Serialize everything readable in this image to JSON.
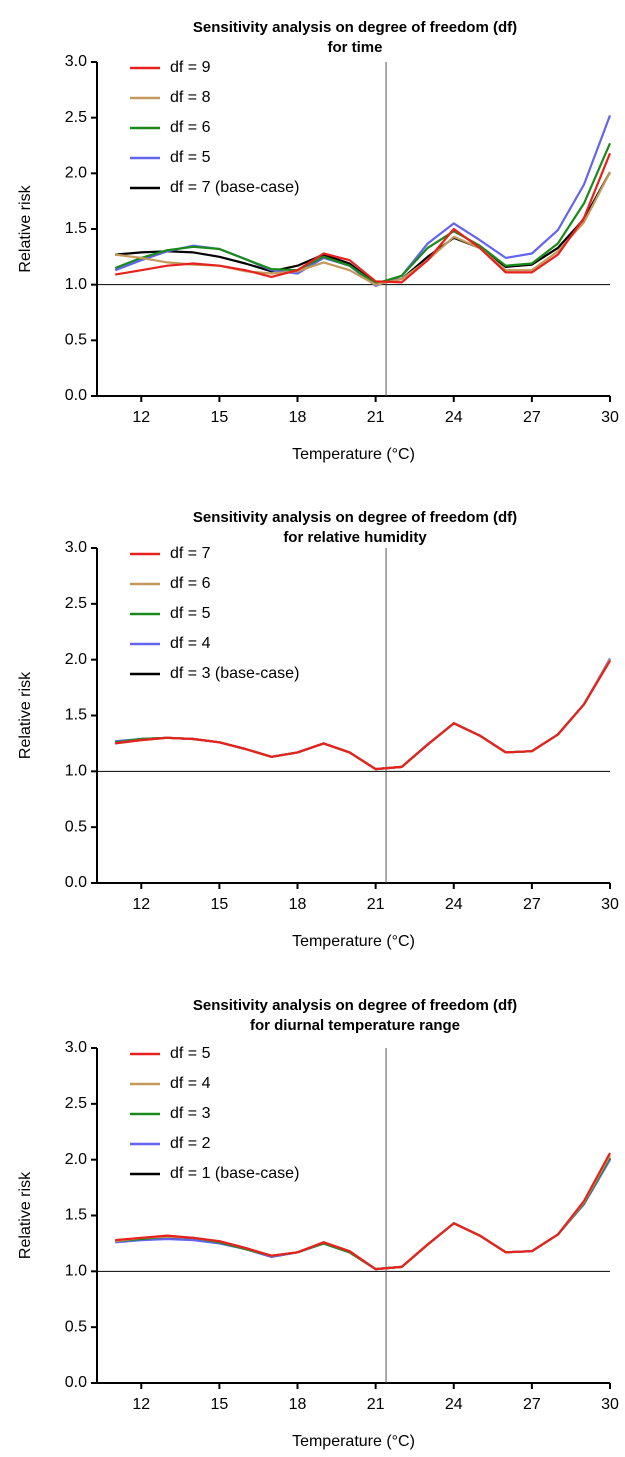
{
  "chart_data": [
    {
      "type": "line",
      "title": [
        "Sensitivity analysis on degree of freedom (df)",
        "for time"
      ],
      "x_label": "Temperature (°C)",
      "y_label": "Relative risk",
      "x": [
        11,
        12,
        13,
        14,
        15,
        16,
        17,
        18,
        19,
        20,
        21,
        22,
        23,
        24,
        25,
        26,
        27,
        28,
        29,
        30
      ],
      "xlim": [
        10.3,
        30
      ],
      "xticks": [
        12,
        15,
        18,
        21,
        24,
        27,
        30
      ],
      "ylim": [
        0,
        3
      ],
      "yticks": [
        {
          "value": 0,
          "label": "0.0"
        },
        {
          "value": 0.5,
          "label": "0.5"
        },
        {
          "value": 1,
          "label": "1.0"
        },
        {
          "value": 1.5,
          "label": "1.5"
        },
        {
          "value": 2,
          "label": "2.0"
        },
        {
          "value": 2.5,
          "label": "2.5"
        },
        {
          "value": 3,
          "label": "3.0"
        }
      ],
      "hline": 1,
      "vline": 21.4,
      "legend": "upper left",
      "series": [
        {
          "name": "df = 9",
          "color": "#e8201e",
          "values": [
            1.09,
            1.13,
            1.17,
            1.19,
            1.17,
            1.13,
            1.07,
            1.13,
            1.28,
            1.22,
            1.03,
            1.02,
            1.22,
            1.5,
            1.33,
            1.11,
            1.11,
            1.27,
            1.6,
            2.18
          ]
        },
        {
          "name": "df = 8",
          "color": "#c49a5c",
          "values": [
            1.27,
            1.24,
            1.2,
            1.18,
            1.17,
            1.12,
            1.1,
            1.12,
            1.2,
            1.13,
            1.0,
            1.05,
            1.22,
            1.43,
            1.33,
            1.13,
            1.13,
            1.3,
            1.56,
            2.01
          ]
        },
        {
          "name": "df = 6",
          "color": "#1a8a1a",
          "values": [
            1.15,
            1.24,
            1.31,
            1.34,
            1.32,
            1.23,
            1.14,
            1.13,
            1.25,
            1.17,
            1.01,
            1.08,
            1.33,
            1.48,
            1.35,
            1.17,
            1.19,
            1.37,
            1.73,
            2.27
          ]
        },
        {
          "name": "df = 5",
          "color": "#6464f0",
          "values": [
            1.13,
            1.22,
            1.3,
            1.35,
            1.32,
            1.23,
            1.13,
            1.1,
            1.24,
            1.17,
            0.99,
            1.08,
            1.37,
            1.55,
            1.4,
            1.24,
            1.28,
            1.49,
            1.9,
            2.52
          ]
        },
        {
          "name": "df = 7 (base-case)",
          "color": "#000000",
          "values": [
            1.27,
            1.29,
            1.3,
            1.29,
            1.25,
            1.19,
            1.12,
            1.17,
            1.27,
            1.19,
            1.01,
            1.05,
            1.25,
            1.42,
            1.33,
            1.16,
            1.18,
            1.33,
            1.59,
            2.01
          ]
        }
      ]
    },
    {
      "type": "line",
      "title": [
        "Sensitivity analysis on degree of freedom (df)",
        "for relative humidity"
      ],
      "x_label": "Temperature (°C)",
      "y_label": "Relative risk",
      "x": [
        11,
        12,
        13,
        14,
        15,
        16,
        17,
        18,
        19,
        20,
        21,
        22,
        23,
        24,
        25,
        26,
        27,
        28,
        29,
        30
      ],
      "xlim": [
        10.3,
        30
      ],
      "xticks": [
        12,
        15,
        18,
        21,
        24,
        27,
        30
      ],
      "ylim": [
        0,
        3
      ],
      "yticks": [
        {
          "value": 0,
          "label": "0.0"
        },
        {
          "value": 0.5,
          "label": "0.5"
        },
        {
          "value": 1,
          "label": "1.0"
        },
        {
          "value": 1.5,
          "label": "1.5"
        },
        {
          "value": 2,
          "label": "2.0"
        },
        {
          "value": 2.5,
          "label": "2.5"
        },
        {
          "value": 3,
          "label": "3.0"
        }
      ],
      "hline": 1,
      "vline": 21.4,
      "legend": "upper left",
      "series": [
        {
          "name": "df = 7",
          "color": "#e8201e",
          "values": [
            1.25,
            1.28,
            1.3,
            1.29,
            1.26,
            1.2,
            1.13,
            1.17,
            1.25,
            1.17,
            1.02,
            1.04,
            1.24,
            1.43,
            1.32,
            1.17,
            1.18,
            1.33,
            1.6,
            1.99
          ]
        },
        {
          "name": "df = 6",
          "color": "#c49a5c",
          "values": [
            1.25,
            1.28,
            1.3,
            1.29,
            1.26,
            1.2,
            1.13,
            1.17,
            1.25,
            1.17,
            1.02,
            1.04,
            1.24,
            1.43,
            1.32,
            1.17,
            1.18,
            1.33,
            1.6,
            2.0
          ]
        },
        {
          "name": "df = 5",
          "color": "#1a8a1a",
          "values": [
            1.26,
            1.29,
            1.3,
            1.29,
            1.26,
            1.2,
            1.13,
            1.17,
            1.25,
            1.17,
            1.02,
            1.04,
            1.24,
            1.43,
            1.32,
            1.17,
            1.18,
            1.33,
            1.6,
            2.0
          ]
        },
        {
          "name": "df = 4",
          "color": "#6464f0",
          "values": [
            1.27,
            1.29,
            1.3,
            1.29,
            1.26,
            1.2,
            1.13,
            1.17,
            1.25,
            1.17,
            1.02,
            1.04,
            1.24,
            1.43,
            1.32,
            1.17,
            1.18,
            1.33,
            1.6,
            2.01
          ]
        },
        {
          "name": "df = 3 (base-case)",
          "color": "#000000",
          "values": [
            1.26,
            1.29,
            1.3,
            1.29,
            1.26,
            1.2,
            1.13,
            1.17,
            1.25,
            1.17,
            1.02,
            1.04,
            1.24,
            1.43,
            1.32,
            1.17,
            1.18,
            1.33,
            1.6,
            2.0
          ]
        }
      ]
    },
    {
      "type": "line",
      "title": [
        "Sensitivity analysis on degree of freedom (df)",
        "for diurnal temperature range"
      ],
      "x_label": "Temperature (°C)",
      "y_label": "Relative risk",
      "x": [
        11,
        12,
        13,
        14,
        15,
        16,
        17,
        18,
        19,
        20,
        21,
        22,
        23,
        24,
        25,
        26,
        27,
        28,
        29,
        30
      ],
      "xlim": [
        10.3,
        30
      ],
      "xticks": [
        12,
        15,
        18,
        21,
        24,
        27,
        30
      ],
      "ylim": [
        0,
        3
      ],
      "yticks": [
        {
          "value": 0,
          "label": "0.0"
        },
        {
          "value": 0.5,
          "label": "0.5"
        },
        {
          "value": 1,
          "label": "1.0"
        },
        {
          "value": 1.5,
          "label": "1.5"
        },
        {
          "value": 2,
          "label": "2.0"
        },
        {
          "value": 2.5,
          "label": "2.5"
        },
        {
          "value": 3,
          "label": "3.0"
        }
      ],
      "hline": 1,
      "vline": 21.4,
      "legend": "upper left",
      "series": [
        {
          "name": "df = 5",
          "color": "#e8201e",
          "values": [
            1.28,
            1.3,
            1.32,
            1.3,
            1.27,
            1.21,
            1.14,
            1.17,
            1.26,
            1.18,
            1.02,
            1.04,
            1.24,
            1.43,
            1.32,
            1.17,
            1.18,
            1.33,
            1.63,
            2.06
          ]
        },
        {
          "name": "df = 4",
          "color": "#c49a5c",
          "values": [
            1.27,
            1.3,
            1.31,
            1.3,
            1.27,
            1.21,
            1.14,
            1.17,
            1.26,
            1.18,
            1.02,
            1.04,
            1.24,
            1.43,
            1.32,
            1.17,
            1.18,
            1.33,
            1.62,
            2.04
          ]
        },
        {
          "name": "df = 3",
          "color": "#1a8a1a",
          "values": [
            1.27,
            1.29,
            1.31,
            1.3,
            1.26,
            1.2,
            1.14,
            1.17,
            1.25,
            1.17,
            1.02,
            1.04,
            1.24,
            1.43,
            1.32,
            1.17,
            1.18,
            1.33,
            1.61,
            2.02
          ]
        },
        {
          "name": "df = 2",
          "color": "#6464f0",
          "values": [
            1.26,
            1.28,
            1.29,
            1.28,
            1.25,
            1.2,
            1.13,
            1.17,
            1.25,
            1.17,
            1.02,
            1.04,
            1.24,
            1.43,
            1.32,
            1.17,
            1.18,
            1.33,
            1.6,
            2.0
          ]
        },
        {
          "name": "df = 1 (base-case)",
          "color": "#000000",
          "values": [
            1.27,
            1.29,
            1.3,
            1.29,
            1.26,
            1.2,
            1.13,
            1.17,
            1.25,
            1.17,
            1.02,
            1.04,
            1.24,
            1.43,
            1.32,
            1.17,
            1.18,
            1.33,
            1.61,
            2.01
          ]
        }
      ]
    }
  ]
}
